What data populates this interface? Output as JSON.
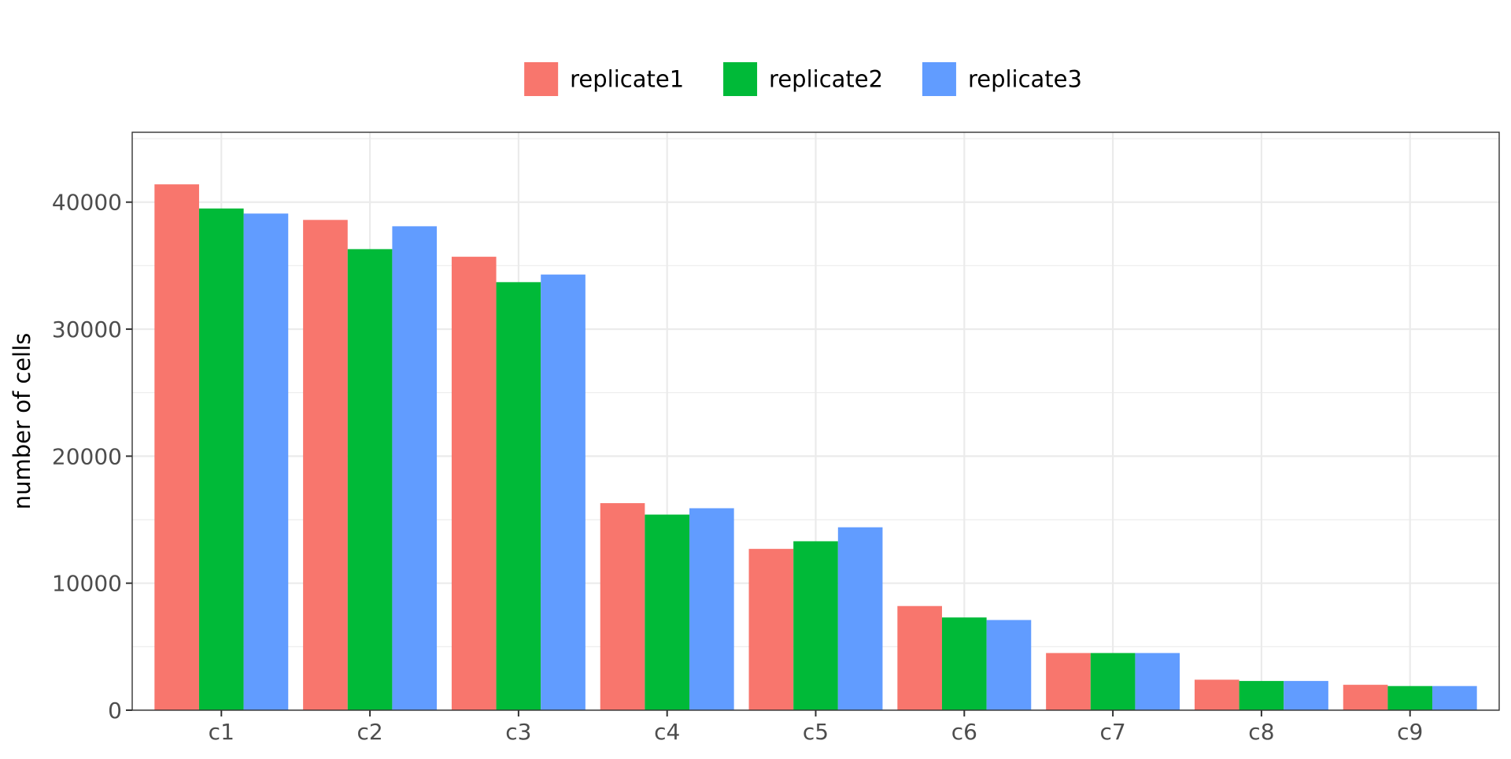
{
  "chart_data": {
    "type": "bar",
    "title": "",
    "xlabel": "",
    "ylabel": "number of cells",
    "ylim": [
      0,
      45500
    ],
    "yticks": [
      0,
      10000,
      20000,
      30000,
      40000
    ],
    "grid": true,
    "legend_position": "top",
    "categories": [
      "c1",
      "c2",
      "c3",
      "c4",
      "c5",
      "c6",
      "c7",
      "c8",
      "c9"
    ],
    "series": [
      {
        "name": "replicate1",
        "color": "#F8766D",
        "values": [
          41400,
          38600,
          35700,
          16300,
          12700,
          8200,
          4500,
          2400,
          2000
        ]
      },
      {
        "name": "replicate2",
        "color": "#00BA38",
        "values": [
          39500,
          36300,
          33700,
          15400,
          13300,
          7300,
          4500,
          2300,
          1900
        ]
      },
      {
        "name": "replicate3",
        "color": "#619CFF",
        "values": [
          39100,
          38100,
          34300,
          15900,
          14400,
          7100,
          4500,
          2300,
          1900
        ]
      }
    ]
  }
}
